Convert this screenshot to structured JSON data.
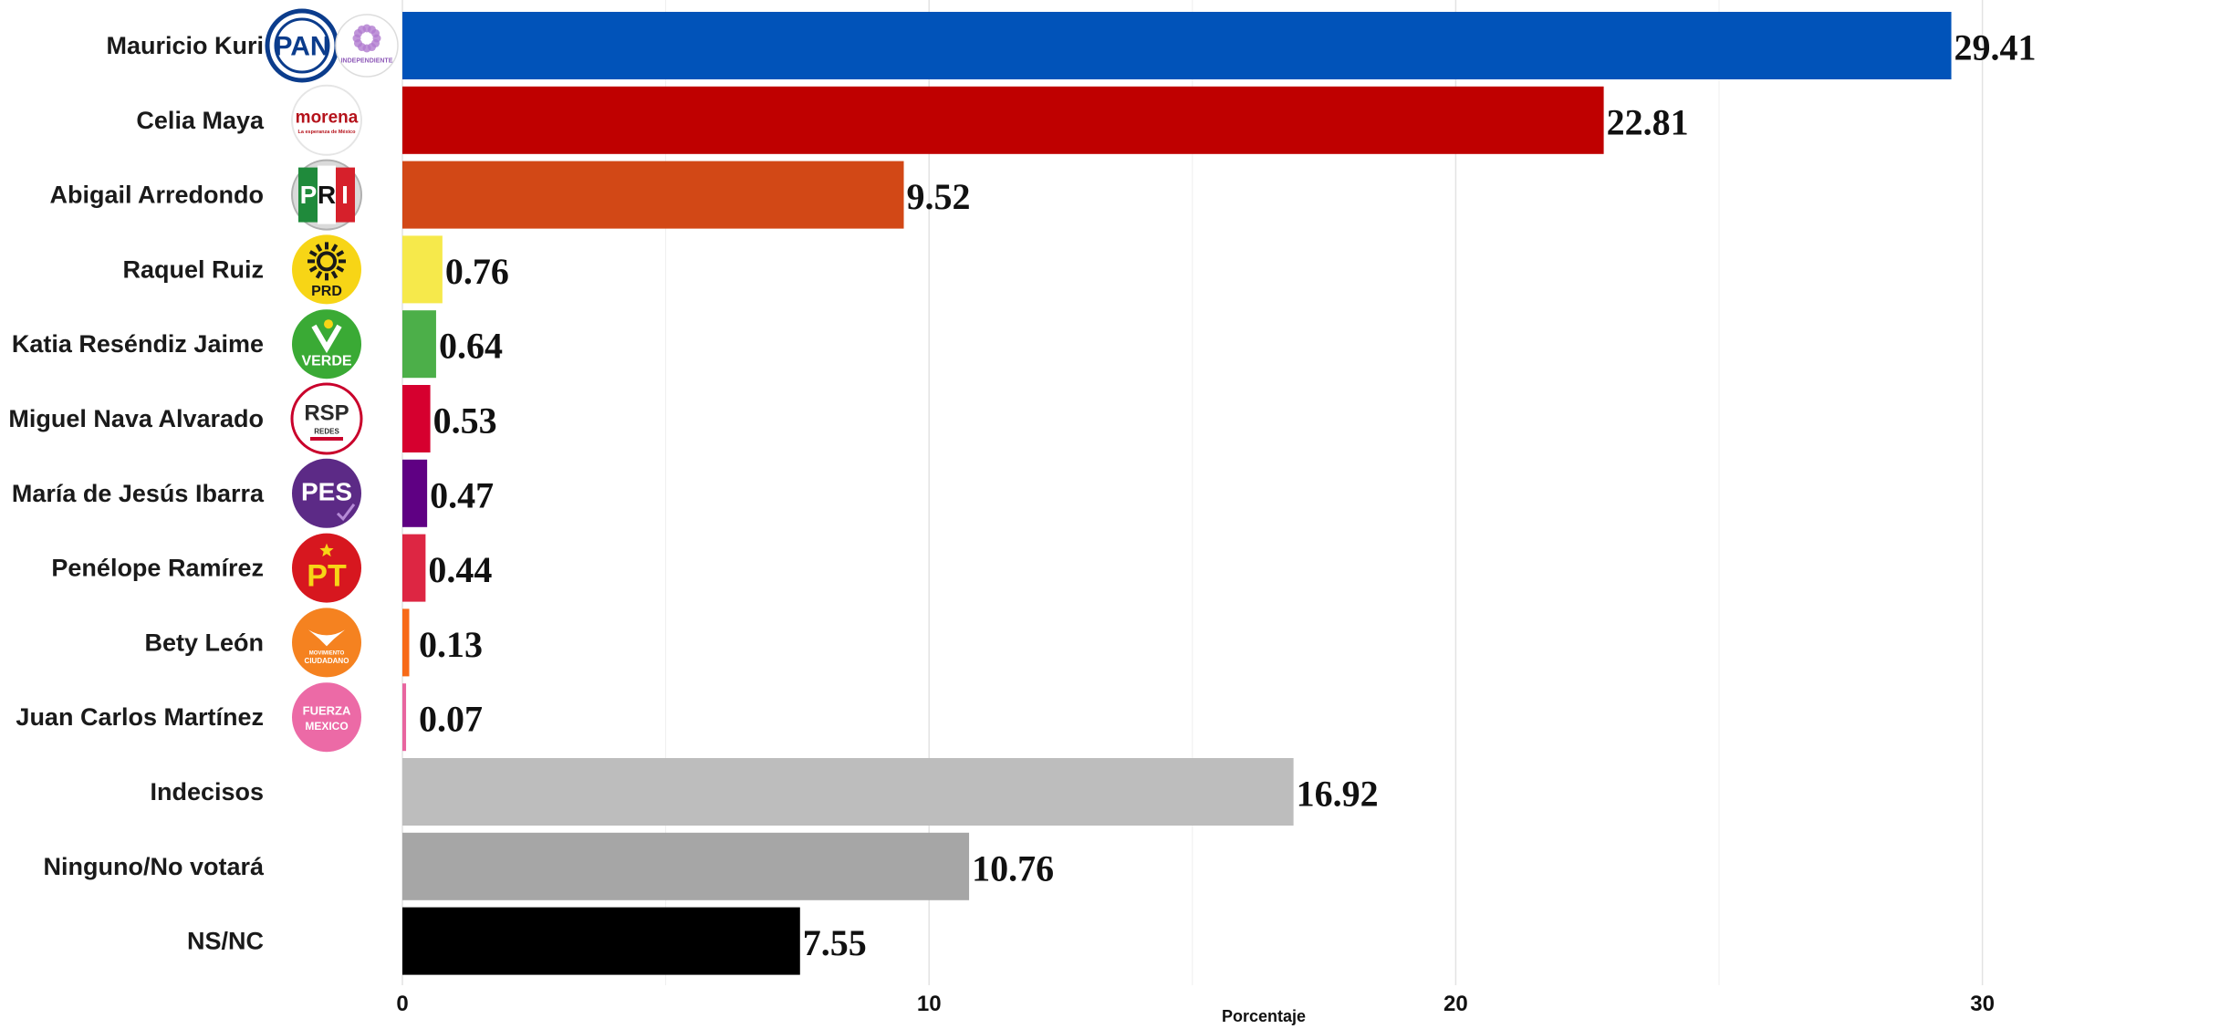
{
  "chart_data": {
    "type": "bar",
    "orientation": "horizontal",
    "categories": [
      "Mauricio Kuri",
      "Celia Maya",
      "Abigail Arredondo",
      "Raquel Ruiz",
      "Katia Reséndiz Jaime",
      "Miguel Nava Alvarado",
      "María de Jesús Ibarra",
      "Penélope Ramírez",
      "Bety León",
      "Juan Carlos Martínez",
      "Indecisos",
      "Ninguno/No votará",
      "NS/NC"
    ],
    "values": [
      29.41,
      22.81,
      9.52,
      0.76,
      0.64,
      0.53,
      0.47,
      0.44,
      0.13,
      0.07,
      16.92,
      10.76,
      7.55
    ],
    "value_labels": [
      "29.41",
      "22.81",
      "9.52",
      "0.76",
      "0.64",
      "0.53",
      "0.47",
      "0.44",
      "0.13",
      "0.07",
      "16.92",
      "10.76",
      "7.55"
    ],
    "colors": [
      "#0153b9",
      "#bf0000",
      "#d24816",
      "#f6e94b",
      "#4caf49",
      "#d6002f",
      "#5f0083",
      "#dd2643",
      "#f76a18",
      "#e8659f",
      "#bdbdbd",
      "#a6a6a6",
      "#000000"
    ],
    "logos": [
      [
        "pan-logo",
        "independiente-logo"
      ],
      [
        "morena-logo"
      ],
      [
        "pri-logo"
      ],
      [
        "prd-logo"
      ],
      [
        "verde-logo"
      ],
      [
        "rsp-logo"
      ],
      [
        "pes-logo"
      ],
      [
        "pt-logo"
      ],
      [
        "movimiento-ciudadano-logo"
      ],
      [
        "fuerza-mexico-logo"
      ],
      [],
      [],
      []
    ],
    "xticks": [
      0,
      10,
      20,
      30
    ],
    "xtick_labels": [
      "0",
      "10",
      "20",
      "30"
    ],
    "xlim": [
      0,
      35
    ],
    "xlabel": "Porcentaje",
    "ylabel": "",
    "title": "",
    "grid": "vertical major and minor gridlines"
  }
}
